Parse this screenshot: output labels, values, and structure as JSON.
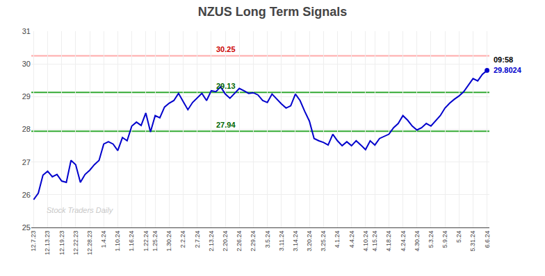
{
  "chart_data": {
    "type": "line",
    "title": "NZUS Long Term Signals",
    "color": "#0000cc",
    "marker": "circle",
    "grid": true,
    "ylim": [
      25,
      31
    ],
    "yticks": [
      25,
      26,
      27,
      28,
      29,
      30,
      31
    ],
    "categories": [
      "12.7.23",
      null,
      null,
      "12.13.23",
      null,
      null,
      "12.19.23",
      null,
      null,
      "12.22.23",
      null,
      null,
      "12.28.23",
      null,
      null,
      "1.4.24",
      null,
      null,
      "1.10.24",
      null,
      null,
      "1.16.24",
      null,
      null,
      "1.22.24",
      null,
      "1.25.24",
      null,
      null,
      "1.30.24",
      null,
      null,
      "2.2.24",
      null,
      null,
      "2.7.24",
      null,
      null,
      "2.13.24",
      null,
      null,
      "2.20.24",
      null,
      null,
      "2.26.24",
      null,
      null,
      "2.29.24",
      null,
      null,
      "3.5.24",
      null,
      null,
      "3.11.24",
      null,
      null,
      "3.14.24",
      null,
      null,
      "3.20.24",
      null,
      null,
      "3.25.24",
      null,
      null,
      "4.1.24",
      null,
      null,
      "4.4.24",
      null,
      null,
      "4.10.24",
      null,
      "4.15.24",
      null,
      null,
      "4.18.24",
      null,
      null,
      "4.24.24",
      null,
      null,
      "4.30.24",
      null,
      null,
      "5.3.24",
      null,
      null,
      "5.9.24",
      null,
      null,
      "5.24",
      null,
      null,
      "5.31.24",
      null,
      null,
      "6.6.24"
    ],
    "values": [
      25.85,
      26.05,
      26.6,
      26.72,
      26.55,
      26.62,
      26.42,
      26.38,
      27.05,
      26.92,
      26.38,
      26.62,
      26.75,
      26.92,
      27.05,
      27.55,
      27.62,
      27.55,
      27.35,
      27.75,
      27.65,
      28.1,
      28.22,
      28.12,
      28.5,
      27.92,
      28.42,
      28.35,
      28.68,
      28.8,
      28.88,
      29.1,
      28.85,
      28.6,
      28.82,
      28.95,
      29.1,
      28.88,
      29.18,
      29.15,
      29.3,
      29.08,
      28.95,
      29.1,
      29.25,
      29.18,
      29.1,
      29.12,
      29.05,
      28.88,
      28.82,
      29.08,
      28.92,
      28.78,
      28.65,
      28.72,
      29.08,
      28.88,
      28.55,
      28.25,
      27.72,
      27.65,
      27.6,
      27.52,
      27.85,
      27.65,
      27.5,
      27.62,
      27.5,
      27.65,
      27.52,
      27.38,
      27.65,
      27.52,
      27.72,
      27.78,
      27.85,
      28.05,
      28.18,
      28.42,
      28.28,
      28.1,
      27.98,
      28.05,
      28.18,
      28.1,
      28.25,
      28.42,
      28.65,
      28.8,
      28.92,
      29.02,
      29.15,
      29.35,
      29.55,
      29.48,
      29.68,
      29.8024
    ],
    "lines": [
      {
        "y": 30.25,
        "label": "30.25",
        "color": "#ffaaaa",
        "label_color": "#cc0000"
      },
      {
        "y": 29.13,
        "label": "29.13",
        "color": "#33aa33",
        "label_color": "#006600"
      },
      {
        "y": 27.94,
        "label": "27.94",
        "color": "#33aa33",
        "label_color": "#006600"
      }
    ],
    "annotations": [
      {
        "text": "09:58",
        "y": 29.8024,
        "color": "#000000"
      },
      {
        "text": "29.8024",
        "y": 29.8024,
        "color": "#0000cc"
      },
      {
        "text": "Stock Traders Daily",
        "color": "#bbbbbb"
      }
    ]
  }
}
